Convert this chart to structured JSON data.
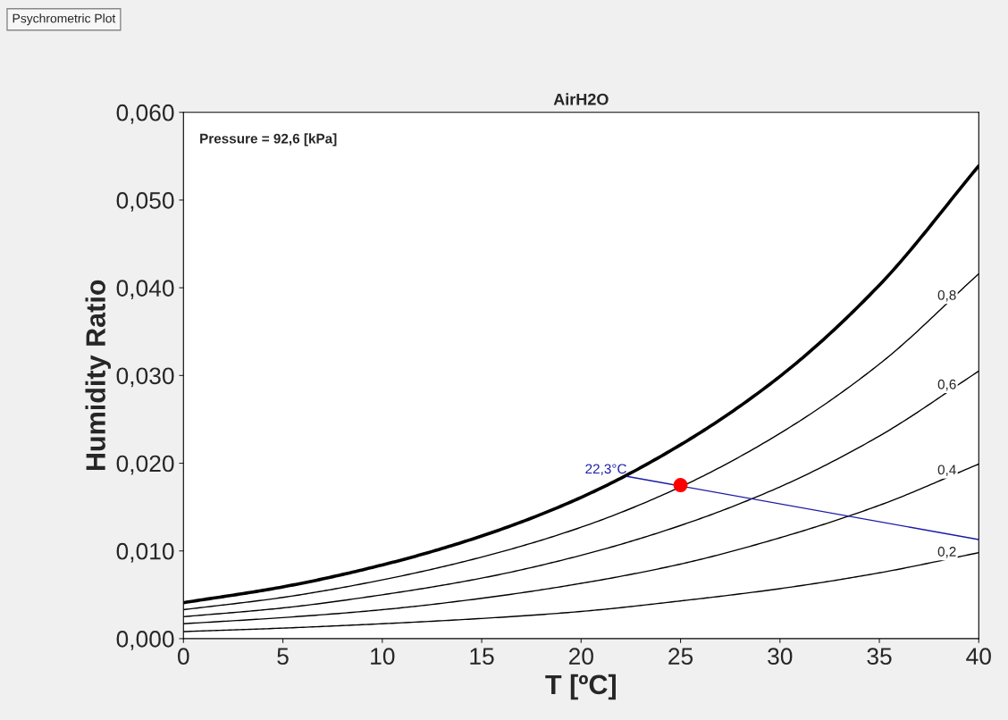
{
  "chart_data": {
    "type": "line",
    "title": "AirH2O",
    "xlabel": "T [ºC]",
    "ylabel": "Humidity Ratio",
    "x": [
      0,
      5,
      10,
      15,
      20,
      25,
      30,
      35,
      40
    ],
    "series": [
      {
        "color": "#000000",
        "values": [
          0.0041,
          0.0059,
          0.0084,
          0.0117,
          0.0161,
          0.0221,
          0.0299,
          0.0403,
          0.0539
        ]
      },
      {
        "name": "0,8",
        "color": "#000000",
        "values": [
          0.0033,
          0.0047,
          0.0067,
          0.0093,
          0.0127,
          0.0173,
          0.0234,
          0.0313,
          0.0416
        ]
      },
      {
        "name": "0,6",
        "color": "#000000",
        "values": [
          0.0025,
          0.0035,
          0.005,
          0.0069,
          0.0095,
          0.0129,
          0.0173,
          0.0231,
          0.0305
        ]
      },
      {
        "name": "0,4",
        "color": "#000000",
        "values": [
          0.0017,
          0.0024,
          0.0033,
          0.0046,
          0.0063,
          0.0085,
          0.0115,
          0.0152,
          0.0199
        ]
      },
      {
        "name": "0,2",
        "color": "#000000",
        "values": [
          0.0008,
          0.0012,
          0.0017,
          0.0023,
          0.0031,
          0.0043,
          0.0057,
          0.0075,
          0.0098
        ]
      },
      {
        "color": "#1a1aa6",
        "x": [
          22.3,
          40
        ],
        "values": [
          0.0185,
          0.0113
        ]
      },
      {
        "type": "scatter",
        "marker": "circle",
        "color": "#ff0000",
        "x": [
          25
        ],
        "values": [
          0.0175
        ]
      }
    ],
    "annotations": [
      "Psychrometric Plot",
      "Pressure = 92,6 [kPa]",
      {
        "text": "22,3°C",
        "x": 22.3,
        "y": 0.0185
      }
    ],
    "xlim": [
      0,
      40
    ],
    "xticks": [
      0,
      5,
      10,
      15,
      20,
      25,
      30,
      35,
      40
    ],
    "ylim": [
      0,
      0.06
    ],
    "yticks": [
      {
        "value": 0,
        "label": "0,000"
      },
      {
        "value": 0.01,
        "label": "0,010"
      },
      {
        "value": 0.02,
        "label": "0,020"
      },
      {
        "value": 0.03,
        "label": "0,030"
      },
      {
        "value": 0.04,
        "label": "0,040"
      },
      {
        "value": 0.05,
        "label": "0,050"
      },
      {
        "value": 0.06,
        "label": "0,060"
      }
    ],
    "grid": false,
    "legend": false
  }
}
